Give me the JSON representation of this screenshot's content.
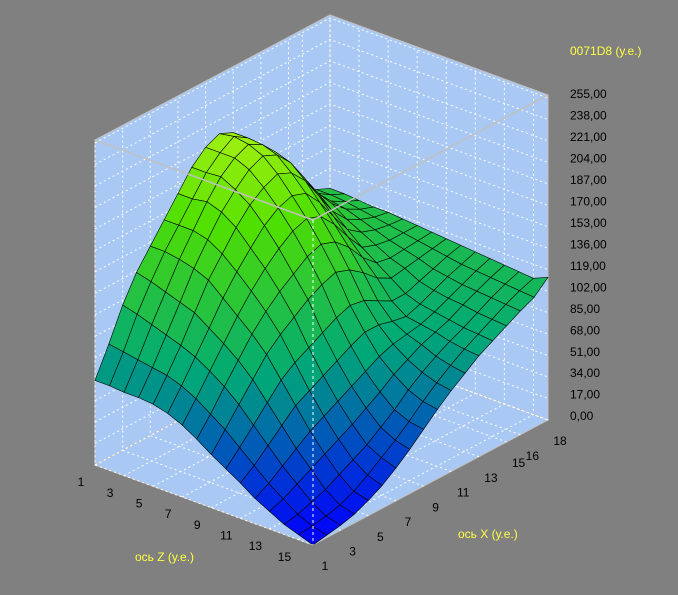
{
  "chart_data": {
    "type": "surface",
    "value_axis_label": "0071D8 (у.е.)",
    "x_axis_label": "ось X (у.е.)",
    "z_axis_label": "ось Z (у.е.)",
    "x": [
      1,
      2,
      3,
      4,
      5,
      6,
      7,
      8,
      9,
      10,
      11,
      12,
      13,
      14,
      15,
      16,
      17,
      18
    ],
    "z": [
      1,
      2,
      3,
      4,
      5,
      6,
      7,
      8,
      9,
      10,
      11,
      12,
      13,
      14,
      15,
      16
    ],
    "xlim": [
      1,
      18
    ],
    "zlim": [
      1,
      16
    ],
    "ylim": [
      0,
      255
    ],
    "xticks": [
      1,
      3,
      5,
      7,
      9,
      11,
      13,
      15,
      16,
      18
    ],
    "zticks": [
      1,
      3,
      5,
      7,
      9,
      11,
      13,
      15
    ],
    "yticks": [
      {
        "value": 0,
        "label": "0,00"
      },
      {
        "value": 17,
        "label": "17,00"
      },
      {
        "value": 34,
        "label": "34,00"
      },
      {
        "value": 51,
        "label": "51,00"
      },
      {
        "value": 68,
        "label": "68,00"
      },
      {
        "value": 85,
        "label": "85,00"
      },
      {
        "value": 102,
        "label": "102,00"
      },
      {
        "value": 119,
        "label": "119,00"
      },
      {
        "value": 136,
        "label": "136,00"
      },
      {
        "value": 153,
        "label": "153,00"
      },
      {
        "value": 170,
        "label": "170,00"
      },
      {
        "value": 187,
        "label": "187,00"
      },
      {
        "value": 204,
        "label": "204,00"
      },
      {
        "value": 221,
        "label": "221,00"
      },
      {
        "value": 238,
        "label": "238,00"
      },
      {
        "value": 255,
        "label": "255,00"
      }
    ],
    "grid": true,
    "colormap": [
      "#0000ff",
      "#00a878",
      "#50e000",
      "#f0ff20"
    ],
    "values": [
      [
        67,
        90,
        115,
        135,
        150,
        165,
        180,
        195,
        205,
        210,
        205,
        190,
        175,
        160,
        145,
        130,
        125,
        120
      ],
      [
        67,
        88,
        112,
        132,
        150,
        165,
        180,
        195,
        205,
        212,
        205,
        192,
        178,
        160,
        145,
        132,
        125,
        120
      ],
      [
        66,
        86,
        108,
        128,
        148,
        165,
        182,
        196,
        205,
        210,
        204,
        192,
        176,
        158,
        142,
        130,
        124,
        119
      ],
      [
        66,
        84,
        104,
        124,
        145,
        162,
        178,
        190,
        200,
        205,
        200,
        188,
        170,
        152,
        138,
        128,
        122,
        118
      ],
      [
        65,
        82,
        100,
        120,
        140,
        155,
        170,
        182,
        190,
        195,
        190,
        178,
        160,
        142,
        130,
        124,
        120,
        118
      ],
      [
        62,
        78,
        95,
        112,
        130,
        145,
        158,
        170,
        178,
        182,
        178,
        165,
        148,
        132,
        124,
        120,
        118,
        117
      ],
      [
        57,
        72,
        88,
        104,
        120,
        134,
        146,
        156,
        164,
        168,
        164,
        152,
        136,
        122,
        118,
        116,
        116,
        116
      ],
      [
        50,
        64,
        80,
        95,
        110,
        122,
        132,
        140,
        148,
        152,
        148,
        138,
        124,
        114,
        112,
        113,
        114,
        115
      ],
      [
        42,
        56,
        70,
        84,
        98,
        108,
        116,
        124,
        130,
        134,
        130,
        122,
        112,
        106,
        108,
        110,
        112,
        114
      ],
      [
        35,
        46,
        58,
        70,
        82,
        90,
        96,
        102,
        108,
        112,
        110,
        104,
        98,
        98,
        102,
        106,
        110,
        113
      ],
      [
        28,
        36,
        46,
        56,
        66,
        72,
        78,
        84,
        90,
        95,
        95,
        92,
        90,
        94,
        99,
        104,
        108,
        112
      ],
      [
        20,
        26,
        34,
        42,
        50,
        56,
        62,
        68,
        74,
        80,
        84,
        86,
        88,
        92,
        97,
        102,
        107,
        111
      ],
      [
        14,
        18,
        24,
        30,
        36,
        42,
        48,
        55,
        62,
        70,
        76,
        82,
        86,
        90,
        96,
        101,
        106,
        110
      ],
      [
        8,
        10,
        14,
        18,
        24,
        30,
        36,
        44,
        52,
        62,
        70,
        77,
        83,
        88,
        94,
        100,
        105,
        109
      ],
      [
        4,
        5,
        7,
        10,
        15,
        22,
        30,
        38,
        47,
        57,
        66,
        74,
        81,
        87,
        93,
        99,
        104,
        108
      ],
      [
        0,
        2,
        4,
        7,
        12,
        18,
        26,
        35,
        45,
        55,
        64,
        72,
        80,
        86,
        92,
        98,
        103,
        113
      ]
    ]
  }
}
